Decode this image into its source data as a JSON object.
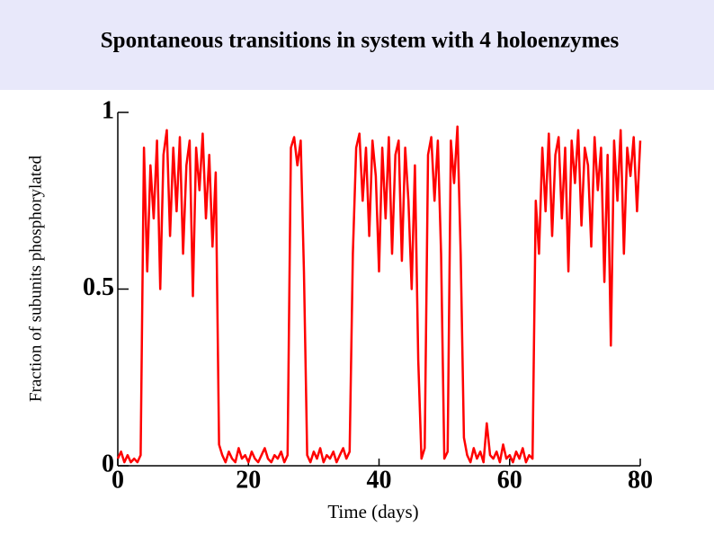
{
  "chart_data": {
    "type": "line",
    "title": "Spontaneous transitions in system with 4 holoenzymes",
    "x_label": "Time (days)",
    "y_label": "Fraction of subunits phosphorylated",
    "xlim": [
      0,
      80
    ],
    "xticks": [
      0,
      20,
      40,
      60,
      80
    ],
    "ylim": [
      0,
      1
    ],
    "yticks": [
      0,
      0.5,
      1
    ],
    "x": [
      0,
      0.5,
      1,
      1.5,
      2,
      2.5,
      3,
      3.5,
      4,
      4.5,
      5,
      5.5,
      6,
      6.5,
      7,
      7.5,
      8,
      8.5,
      9,
      9.5,
      10,
      10.5,
      11,
      11.5,
      12,
      12.5,
      13,
      13.5,
      14,
      14.5,
      15,
      15.5,
      16,
      16.5,
      17,
      17.5,
      18,
      18.5,
      19,
      19.5,
      20,
      20.5,
      21,
      21.5,
      22,
      22.5,
      23,
      23.5,
      24,
      24.5,
      25,
      25.5,
      26,
      26.5,
      27,
      27.5,
      28,
      28.5,
      29,
      29.5,
      30,
      30.5,
      31,
      31.5,
      32,
      32.5,
      33,
      33.5,
      34,
      34.5,
      35,
      35.5,
      36,
      36.5,
      37,
      37.5,
      38,
      38.5,
      39,
      39.5,
      40,
      40.5,
      41,
      41.5,
      42,
      42.5,
      43,
      43.5,
      44,
      44.5,
      45,
      45.5,
      46,
      46.5,
      47,
      47.5,
      48,
      48.5,
      49,
      49.5,
      50,
      50.5,
      51,
      51.5,
      52,
      52.5,
      53,
      53.5,
      54,
      54.5,
      55,
      55.5,
      56,
      56.5,
      57,
      57.5,
      58,
      58.5,
      59,
      59.5,
      60,
      60.5,
      61,
      61.5,
      62,
      62.5,
      63,
      63.5,
      64,
      64.5,
      65,
      65.5,
      66,
      66.5,
      67,
      67.5,
      68,
      68.5,
      69,
      69.5,
      70,
      70.5,
      71,
      71.5,
      72,
      72.5,
      73,
      73.5,
      74,
      74.5,
      75,
      75.5,
      76,
      76.5,
      77,
      77.5,
      78,
      78.5,
      79,
      79.5,
      80
    ],
    "series": [
      {
        "color": "#ff0000",
        "values": [
          0.02,
          0.04,
          0.01,
          0.03,
          0.01,
          0.02,
          0.01,
          0.03,
          0.9,
          0.55,
          0.85,
          0.7,
          0.92,
          0.5,
          0.88,
          0.95,
          0.65,
          0.9,
          0.72,
          0.93,
          0.6,
          0.85,
          0.92,
          0.48,
          0.9,
          0.78,
          0.94,
          0.7,
          0.88,
          0.62,
          0.83,
          0.06,
          0.03,
          0.01,
          0.04,
          0.02,
          0.01,
          0.05,
          0.02,
          0.03,
          0.01,
          0.04,
          0.02,
          0.01,
          0.03,
          0.05,
          0.02,
          0.01,
          0.03,
          0.02,
          0.04,
          0.01,
          0.03,
          0.9,
          0.93,
          0.85,
          0.92,
          0.55,
          0.03,
          0.01,
          0.04,
          0.02,
          0.05,
          0.01,
          0.03,
          0.02,
          0.04,
          0.01,
          0.03,
          0.05,
          0.02,
          0.04,
          0.6,
          0.9,
          0.94,
          0.75,
          0.9,
          0.65,
          0.92,
          0.82,
          0.55,
          0.9,
          0.7,
          0.93,
          0.6,
          0.88,
          0.92,
          0.58,
          0.9,
          0.75,
          0.5,
          0.85,
          0.3,
          0.02,
          0.05,
          0.88,
          0.93,
          0.75,
          0.92,
          0.6,
          0.02,
          0.04,
          0.92,
          0.8,
          0.96,
          0.6,
          0.08,
          0.03,
          0.01,
          0.05,
          0.02,
          0.04,
          0.01,
          0.12,
          0.03,
          0.02,
          0.04,
          0.01,
          0.06,
          0.02,
          0.03,
          0.01,
          0.04,
          0.02,
          0.05,
          0.01,
          0.03,
          0.02,
          0.75,
          0.6,
          0.9,
          0.72,
          0.94,
          0.65,
          0.88,
          0.93,
          0.7,
          0.9,
          0.55,
          0.92,
          0.8,
          0.95,
          0.68,
          0.9,
          0.85,
          0.62,
          0.93,
          0.78,
          0.9,
          0.52,
          0.88,
          0.34,
          0.92,
          0.75,
          0.95,
          0.6,
          0.9,
          0.82,
          0.93,
          0.72,
          0.92
        ]
      }
    ]
  }
}
